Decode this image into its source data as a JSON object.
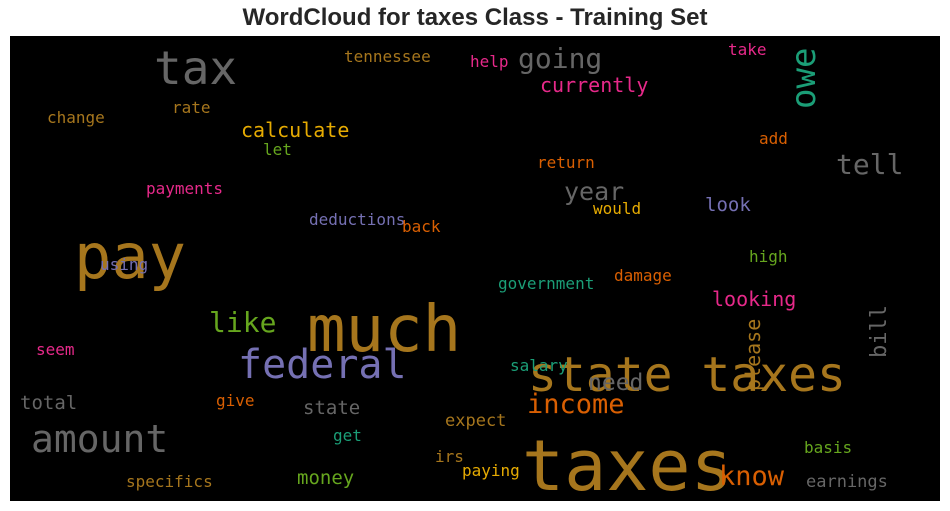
{
  "chart_data": {
    "type": "wordcloud",
    "title": "WordCloud for taxes Class - Training Set",
    "background": "#000000",
    "words": [
      {
        "text": "taxes",
        "weight": 1.0,
        "color": "#a6761d"
      },
      {
        "text": "much",
        "weight": 0.85,
        "color": "#a6761d"
      },
      {
        "text": "state taxes",
        "weight": 0.72,
        "color": "#a6761d"
      },
      {
        "text": "pay",
        "weight": 0.78,
        "color": "#a6761d"
      },
      {
        "text": "federal",
        "weight": 0.62,
        "color": "#7570b3"
      },
      {
        "text": "tax",
        "weight": 0.58,
        "color": "#666666"
      },
      {
        "text": "amount",
        "weight": 0.52,
        "color": "#666666"
      },
      {
        "text": "owe",
        "weight": 0.42,
        "color": "#1b9e77"
      },
      {
        "text": "like",
        "weight": 0.4,
        "color": "#66a61e"
      },
      {
        "text": "going",
        "weight": 0.4,
        "color": "#666666"
      },
      {
        "text": "tell",
        "weight": 0.38,
        "color": "#666666"
      },
      {
        "text": "know",
        "weight": 0.36,
        "color": "#d95f02"
      },
      {
        "text": "income",
        "weight": 0.35,
        "color": "#d95f02"
      },
      {
        "text": "year",
        "weight": 0.32,
        "color": "#666666"
      },
      {
        "text": "need",
        "weight": 0.3,
        "color": "#666666"
      },
      {
        "text": "bill",
        "weight": 0.28,
        "color": "#666666"
      },
      {
        "text": "currently",
        "weight": 0.28,
        "color": "#e7298a"
      },
      {
        "text": "calculate",
        "weight": 0.27,
        "color": "#e6ab02"
      },
      {
        "text": "looking",
        "weight": 0.27,
        "color": "#e7298a"
      },
      {
        "text": "please",
        "weight": 0.26,
        "color": "#a6761d"
      },
      {
        "text": "money",
        "weight": 0.26,
        "color": "#66a61e"
      },
      {
        "text": "look",
        "weight": 0.25,
        "color": "#7570b3"
      },
      {
        "text": "total",
        "weight": 0.25,
        "color": "#666666"
      },
      {
        "text": "state",
        "weight": 0.24,
        "color": "#666666"
      },
      {
        "text": "earnings",
        "weight": 0.23,
        "color": "#666666"
      },
      {
        "text": "expect",
        "weight": 0.22,
        "color": "#a6761d"
      },
      {
        "text": "government",
        "weight": 0.22,
        "color": "#1b9e77"
      },
      {
        "text": "specifics",
        "weight": 0.22,
        "color": "#a6761d"
      },
      {
        "text": "paying",
        "weight": 0.22,
        "color": "#e6ab02"
      },
      {
        "text": "irs",
        "weight": 0.22,
        "color": "#a6761d"
      },
      {
        "text": "deductions",
        "weight": 0.22,
        "color": "#7570b3"
      },
      {
        "text": "return",
        "weight": 0.22,
        "color": "#d95f02"
      },
      {
        "text": "damage",
        "weight": 0.21,
        "color": "#d95f02"
      },
      {
        "text": "payments",
        "weight": 0.21,
        "color": "#e7298a"
      },
      {
        "text": "tennessee",
        "weight": 0.21,
        "color": "#a6761d"
      },
      {
        "text": "change",
        "weight": 0.21,
        "color": "#a6761d"
      },
      {
        "text": "salary",
        "weight": 0.21,
        "color": "#1b9e77"
      },
      {
        "text": "basis",
        "weight": 0.2,
        "color": "#66a61e"
      },
      {
        "text": "high",
        "weight": 0.2,
        "color": "#66a61e"
      },
      {
        "text": "rate",
        "weight": 0.2,
        "color": "#a6761d"
      },
      {
        "text": "help",
        "weight": 0.2,
        "color": "#e7298a"
      },
      {
        "text": "take",
        "weight": 0.2,
        "color": "#e7298a"
      },
      {
        "text": "add",
        "weight": 0.2,
        "color": "#d95f02"
      },
      {
        "text": "let",
        "weight": 0.2,
        "color": "#66a61e"
      },
      {
        "text": "would",
        "weight": 0.2,
        "color": "#e6ab02"
      },
      {
        "text": "back",
        "weight": 0.2,
        "color": "#d95f02"
      },
      {
        "text": "using",
        "weight": 0.2,
        "color": "#7570b3"
      },
      {
        "text": "seem",
        "weight": 0.2,
        "color": "#e7298a"
      },
      {
        "text": "give",
        "weight": 0.2,
        "color": "#d95f02"
      },
      {
        "text": "get",
        "weight": 0.2,
        "color": "#1b9e77"
      }
    ]
  }
}
